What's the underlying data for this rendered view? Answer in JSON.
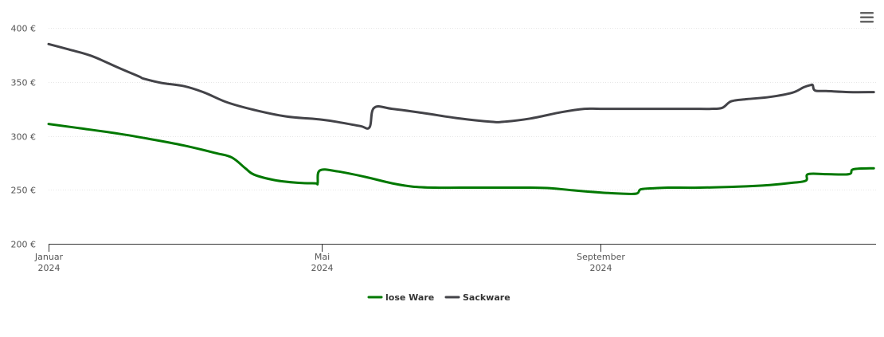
{
  "chart_data": {
    "type": "line",
    "title": "",
    "xlabel": "",
    "ylabel": "",
    "ylim": [
      200,
      400
    ],
    "y_ticks": [
      {
        "value": 200,
        "label": "200 €"
      },
      {
        "value": 250,
        "label": "250 €"
      },
      {
        "value": 300,
        "label": "300 €"
      },
      {
        "value": 350,
        "label": "350 €"
      },
      {
        "value": 400,
        "label": "400 €"
      }
    ],
    "x_range": [
      "2024-01-01",
      "2024-12-31"
    ],
    "x_ticks": [
      {
        "date": "2024-01-01",
        "month": "Januar",
        "year": "2024"
      },
      {
        "date": "2024-05-01",
        "month": "Mai",
        "year": "2024"
      },
      {
        "date": "2024-09-01",
        "month": "September",
        "year": "2024"
      }
    ],
    "grid": true,
    "legend_position": "bottom-center",
    "series": [
      {
        "name": "lose Ware",
        "color": "#007800",
        "points": [
          [
            "2024-01-01",
            311
          ],
          [
            "2024-01-15",
            307
          ],
          [
            "2024-02-01",
            302
          ],
          [
            "2024-02-15",
            297
          ],
          [
            "2024-03-01",
            291
          ],
          [
            "2024-03-15",
            284
          ],
          [
            "2024-03-22",
            280
          ],
          [
            "2024-03-28",
            270
          ],
          [
            "2024-04-01",
            264
          ],
          [
            "2024-04-10",
            259
          ],
          [
            "2024-04-20",
            256.5
          ],
          [
            "2024-04-28",
            256
          ],
          [
            "2024-04-29",
            256
          ],
          [
            "2024-04-30",
            268
          ],
          [
            "2024-05-08",
            267
          ],
          [
            "2024-05-20",
            262
          ],
          [
            "2024-06-01",
            256
          ],
          [
            "2024-06-10",
            253
          ],
          [
            "2024-06-20",
            252
          ],
          [
            "2024-07-01",
            252
          ],
          [
            "2024-07-15",
            252
          ],
          [
            "2024-08-01",
            252
          ],
          [
            "2024-08-10",
            251.5
          ],
          [
            "2024-08-20",
            249.5
          ],
          [
            "2024-09-01",
            247.5
          ],
          [
            "2024-09-10",
            246.5
          ],
          [
            "2024-09-17",
            246.5
          ],
          [
            "2024-09-19",
            250.5
          ],
          [
            "2024-09-25",
            251.5
          ],
          [
            "2024-10-01",
            252
          ],
          [
            "2024-10-15",
            252
          ],
          [
            "2024-11-01",
            253
          ],
          [
            "2024-11-15",
            254.5
          ],
          [
            "2024-11-25",
            256.5
          ],
          [
            "2024-12-01",
            258.5
          ],
          [
            "2024-12-02",
            264.5
          ],
          [
            "2024-12-10",
            264.5
          ],
          [
            "2024-12-20",
            264.5
          ],
          [
            "2024-12-22",
            269
          ],
          [
            "2024-12-31",
            270
          ]
        ]
      },
      {
        "name": "Sackware",
        "color": "#434348",
        "points": [
          [
            "2024-01-01",
            385
          ],
          [
            "2024-01-10",
            380
          ],
          [
            "2024-01-20",
            374
          ],
          [
            "2024-02-01",
            363
          ],
          [
            "2024-02-10",
            355
          ],
          [
            "2024-02-12",
            353
          ],
          [
            "2024-02-20",
            349
          ],
          [
            "2024-03-01",
            346
          ],
          [
            "2024-03-10",
            340
          ],
          [
            "2024-03-20",
            331
          ],
          [
            "2024-04-01",
            324
          ],
          [
            "2024-04-15",
            318
          ],
          [
            "2024-05-01",
            315
          ],
          [
            "2024-05-10",
            312
          ],
          [
            "2024-05-18",
            309
          ],
          [
            "2024-05-22",
            308
          ],
          [
            "2024-05-24",
            326
          ],
          [
            "2024-06-01",
            325
          ],
          [
            "2024-06-15",
            321
          ],
          [
            "2024-07-01",
            316
          ],
          [
            "2024-07-15",
            313
          ],
          [
            "2024-07-20",
            313
          ],
          [
            "2024-08-01",
            316
          ],
          [
            "2024-08-15",
            322
          ],
          [
            "2024-08-25",
            325
          ],
          [
            "2024-09-01",
            325
          ],
          [
            "2024-09-15",
            325
          ],
          [
            "2024-09-30",
            325
          ],
          [
            "2024-10-15",
            325
          ],
          [
            "2024-10-20",
            325
          ],
          [
            "2024-10-25",
            326
          ],
          [
            "2024-10-29",
            332
          ],
          [
            "2024-11-05",
            334
          ],
          [
            "2024-11-15",
            336
          ],
          [
            "2024-11-25",
            340
          ],
          [
            "2024-11-30",
            345
          ],
          [
            "2024-12-03",
            347
          ],
          [
            "2024-12-04",
            347
          ],
          [
            "2024-12-05",
            342
          ],
          [
            "2024-12-10",
            341.5
          ],
          [
            "2024-12-20",
            340.5
          ],
          [
            "2024-12-31",
            340.5
          ]
        ]
      }
    ]
  },
  "menu": {
    "icon": "hamburger-menu-icon"
  }
}
